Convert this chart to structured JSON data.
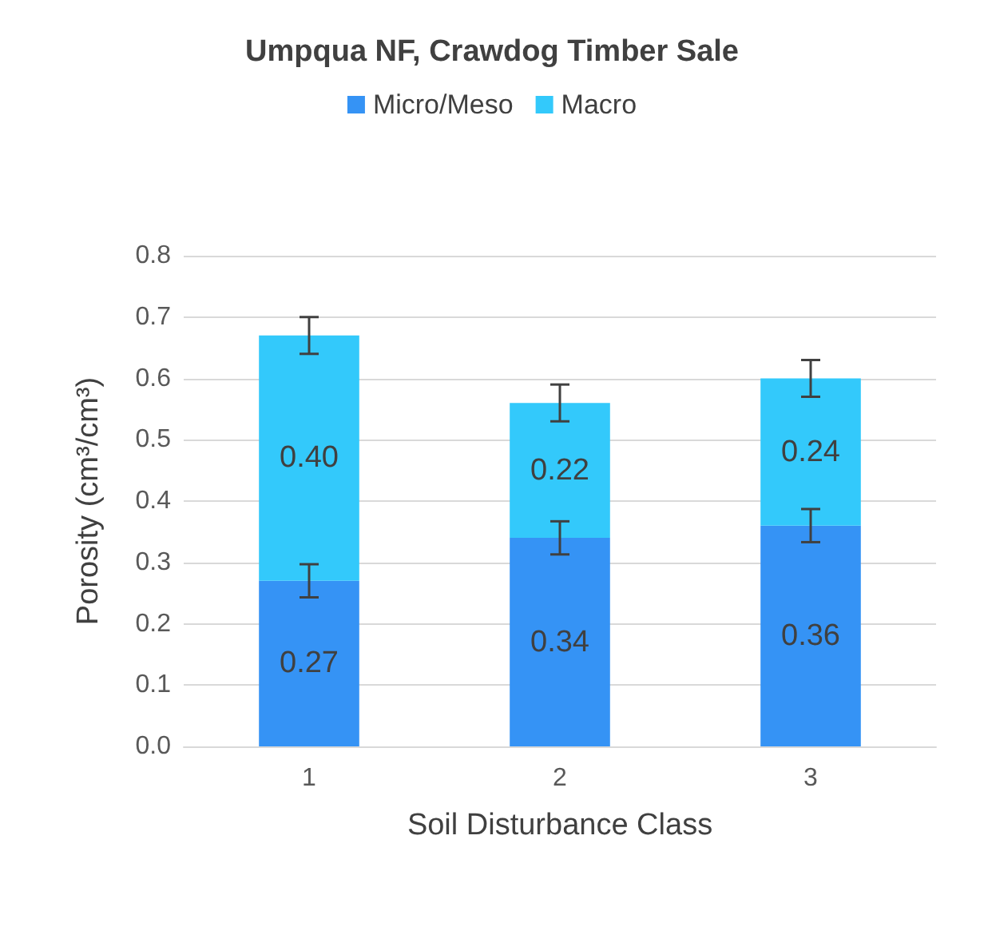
{
  "chart_data": {
    "type": "bar",
    "title": "Umpqua NF, Crawdog Timber Sale",
    "xlabel": "Soil Disturbance Class",
    "ylabel": "Porosity (cm³/cm³)",
    "categories": [
      "1",
      "2",
      "3"
    ],
    "stacked": true,
    "series": [
      {
        "name": "Micro/Meso",
        "color": "#3593f5",
        "values": [
          0.27,
          0.34,
          0.36
        ],
        "value_labels": [
          "0.27",
          "0.34",
          "0.36"
        ],
        "errors": [
          0.027,
          0.027,
          0.027
        ]
      },
      {
        "name": "Macro",
        "color": "#33c9fb",
        "values": [
          0.4,
          0.22,
          0.24
        ],
        "value_labels": [
          "0.40",
          "0.22",
          "0.24"
        ],
        "errors": [
          0.03,
          0.03,
          0.03
        ]
      }
    ],
    "ylim": [
      0,
      0.8
    ],
    "yticks": [
      {
        "value": 0,
        "label": "0.0"
      },
      {
        "value": 0.1,
        "label": "0.1"
      },
      {
        "value": 0.2,
        "label": "0.2"
      },
      {
        "value": 0.3,
        "label": "0.3"
      },
      {
        "value": 0.4,
        "label": "0.4"
      },
      {
        "value": 0.5,
        "label": "0.5"
      },
      {
        "value": 0.6,
        "label": "0.6"
      },
      {
        "value": 0.7,
        "label": "0.7"
      },
      {
        "value": 0.8,
        "label": "0.8"
      }
    ],
    "grid": "y",
    "legend": "top"
  }
}
